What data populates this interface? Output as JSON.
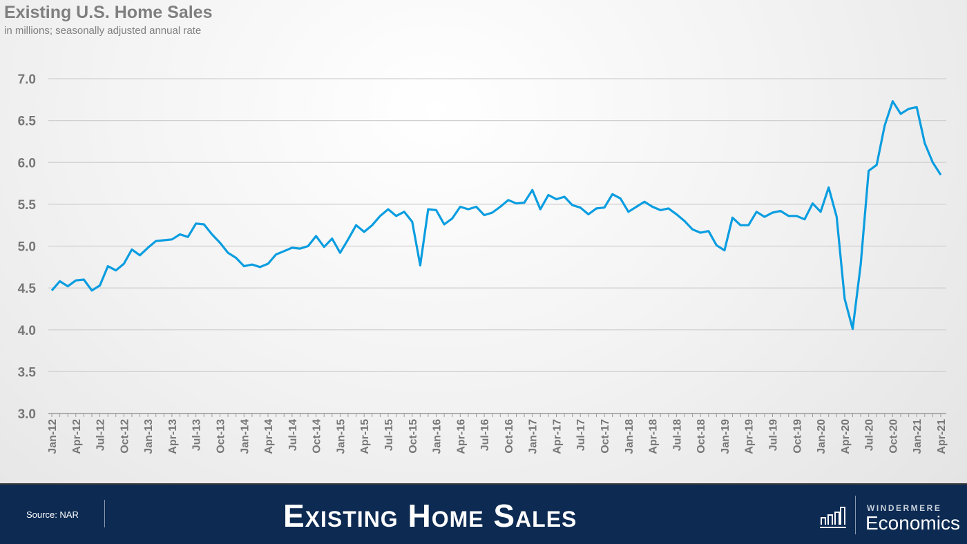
{
  "header": {
    "title": "Existing U.S. Home Sales",
    "subtitle": "in millions; seasonally adjusted annual rate"
  },
  "footer": {
    "source": "Source: NAR",
    "title": "Existing Home Sales",
    "brand_top": "WINDERMERE",
    "brand_bottom": "Economics",
    "logo_icon": "bar-chart-icon",
    "background": "#0c2a52"
  },
  "chart_data": {
    "type": "line",
    "title": "Existing U.S. Home Sales",
    "subtitle": "in millions; seasonally adjusted annual rate",
    "xlabel": "",
    "ylabel": "",
    "ylim": [
      3.0,
      7.0
    ],
    "yticks": [
      "3.0",
      "3.5",
      "4.0",
      "4.5",
      "5.0",
      "5.5",
      "6.0",
      "6.5",
      "7.0"
    ],
    "grid": true,
    "line_color": "#0a9de0",
    "x_start": "Jan-12",
    "x_end": "Apr-21",
    "xtick_labels": [
      "Jan-12",
      "Apr-12",
      "Jul-12",
      "Oct-12",
      "Jan-13",
      "Apr-13",
      "Jul-13",
      "Oct-13",
      "Jan-14",
      "Apr-14",
      "Jul-14",
      "Oct-14",
      "Jan-15",
      "Apr-15",
      "Jul-15",
      "Oct-15",
      "Jan-16",
      "Apr-16",
      "Jul-16",
      "Oct-16",
      "Jan-17",
      "Apr-17",
      "Jul-17",
      "Oct-17",
      "Jan-18",
      "Apr-18",
      "Jul-18",
      "Oct-18",
      "Jan-19",
      "Apr-19",
      "Jul-19",
      "Oct-19",
      "Jan-20",
      "Apr-20",
      "Jul-20",
      "Oct-20",
      "Jan-21",
      "Apr-21"
    ],
    "values": [
      4.47,
      4.58,
      4.52,
      4.59,
      4.6,
      4.47,
      4.53,
      4.76,
      4.71,
      4.79,
      4.96,
      4.89,
      4.98,
      5.06,
      5.07,
      5.08,
      5.14,
      5.11,
      5.27,
      5.26,
      5.14,
      5.04,
      4.92,
      4.86,
      4.76,
      4.78,
      4.75,
      4.79,
      4.9,
      4.94,
      4.98,
      4.97,
      5.0,
      5.12,
      4.99,
      5.09,
      4.92,
      5.08,
      5.25,
      5.17,
      5.25,
      5.36,
      5.44,
      5.36,
      5.41,
      5.29,
      4.77,
      5.44,
      5.43,
      5.26,
      5.33,
      5.47,
      5.44,
      5.47,
      5.37,
      5.4,
      5.47,
      5.55,
      5.51,
      5.52,
      5.67,
      5.44,
      5.61,
      5.56,
      5.59,
      5.49,
      5.46,
      5.38,
      5.45,
      5.46,
      5.62,
      5.57,
      5.41,
      5.47,
      5.53,
      5.47,
      5.43,
      5.45,
      5.38,
      5.3,
      5.2,
      5.16,
      5.18,
      5.01,
      4.95,
      5.34,
      5.25,
      5.25,
      5.41,
      5.35,
      5.4,
      5.42,
      5.36,
      5.36,
      5.32,
      5.51,
      5.41,
      5.7,
      5.35,
      4.37,
      4.01,
      4.78,
      5.9,
      5.97,
      6.44,
      6.73,
      6.58,
      6.64,
      6.66,
      6.23,
      6.0,
      5.85
    ]
  }
}
